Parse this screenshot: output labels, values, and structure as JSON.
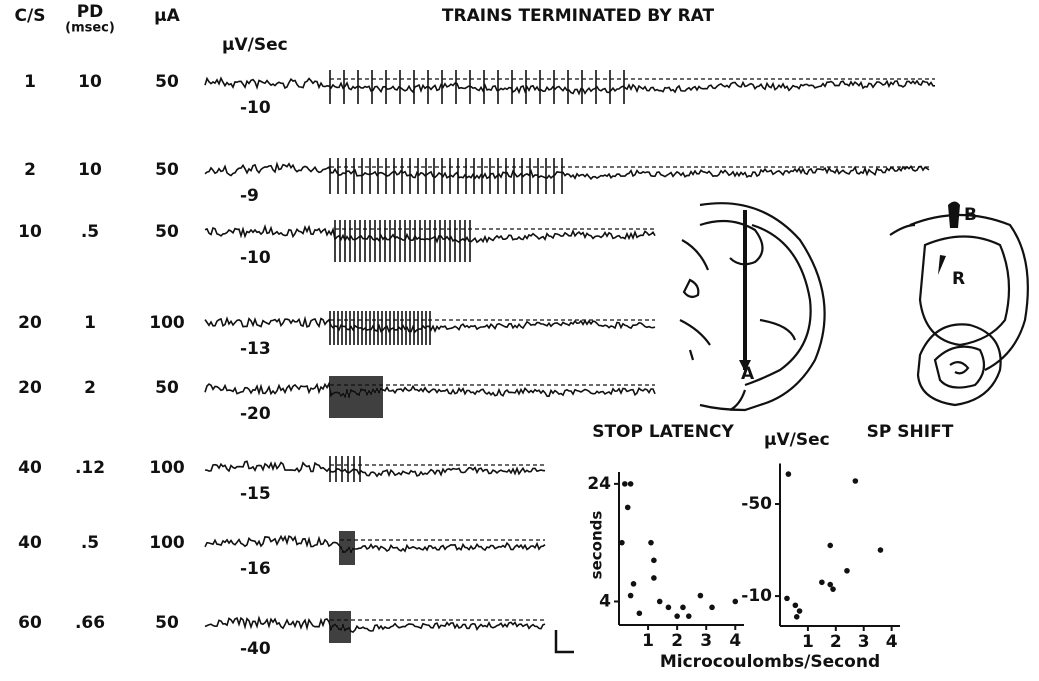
{
  "title": "TRAINS TERMINATED BY RAT",
  "headers": [
    "C/S",
    "PD",
    "μA"
  ],
  "pd_unit": "(msec)",
  "trace_unit": "μV/Sec",
  "rows": [
    [
      "1",
      "10",
      "50",
      "-10"
    ],
    [
      "2",
      "10",
      "50",
      "-9"
    ],
    [
      "10",
      ".5",
      "50",
      "-10"
    ],
    [
      "20",
      "1",
      "100",
      "-13"
    ],
    [
      "20",
      "2",
      "50",
      "-20"
    ],
    [
      "40",
      ".12",
      "100",
      "-15"
    ],
    [
      "40",
      ".5",
      "100",
      "-16"
    ],
    [
      "60",
      ".66",
      "50",
      "-40"
    ]
  ],
  "diagram_labels": [
    "A",
    "B",
    "R"
  ],
  "x_label": "Microcoulombs/Second",
  "chart_data": [
    {
      "type": "scatter",
      "title": "STOP LATENCY",
      "ylabel": "seconds",
      "x": [
        0.2,
        0.4,
        0.3,
        0.1,
        0.5,
        0.4,
        0.7,
        1.1,
        1.2,
        1.2,
        1.4,
        1.7,
        2.0,
        2.2,
        2.4,
        2.8,
        3.2,
        4.0
      ],
      "values": [
        24,
        24,
        20,
        14,
        7,
        5,
        2,
        14,
        11,
        8,
        4,
        3,
        1.5,
        3,
        1.5,
        5,
        3,
        4
      ],
      "xlim": [
        0,
        4.3
      ],
      "ylim": [
        0,
        25
      ],
      "xticks": [
        1,
        2,
        3,
        4
      ],
      "yticks": [
        4,
        24
      ]
    },
    {
      "type": "scatter",
      "title": "SP SHIFT",
      "ylabel": "μV/Sec",
      "x": [
        0.3,
        0.25,
        0.55,
        0.7,
        0.6,
        1.5,
        1.8,
        1.8,
        1.9,
        2.4,
        2.7,
        3.6
      ],
      "values": [
        -63,
        -9,
        -6,
        -3.5,
        -1,
        -16,
        -15,
        -32,
        -13,
        -21,
        -60,
        -30
      ],
      "xlim": [
        0,
        4.3
      ],
      "ylim": [
        3,
        -65
      ],
      "xticks": [
        1,
        2,
        3,
        4
      ],
      "yticks": [
        -50,
        -10
      ]
    }
  ]
}
